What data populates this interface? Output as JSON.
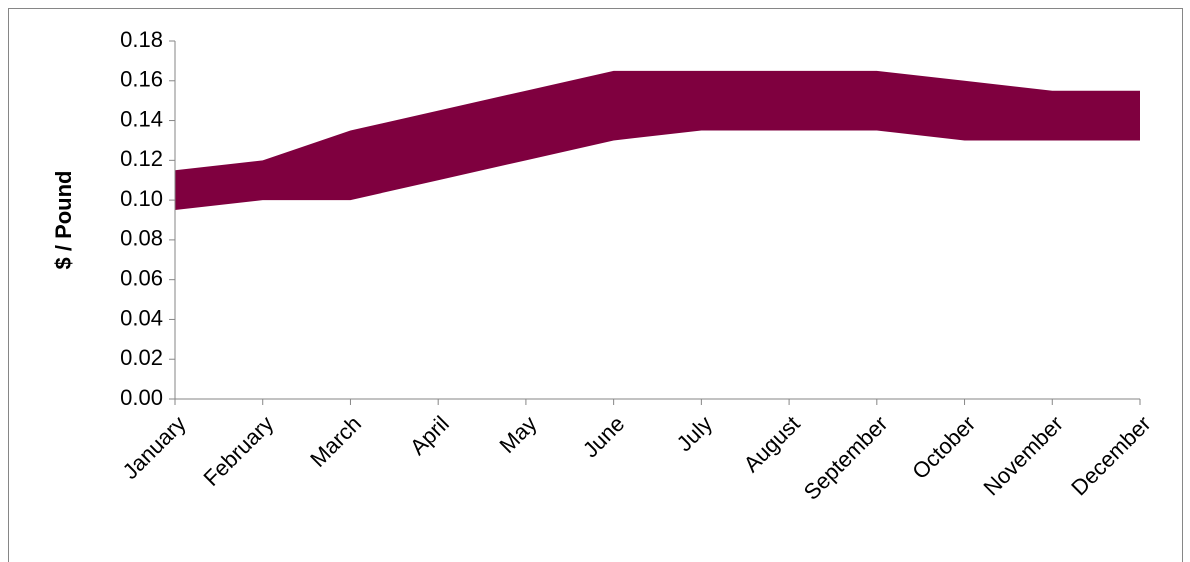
{
  "chart_data": {
    "type": "range_area",
    "y_label": "$ / Pound",
    "categories": [
      "January",
      "February",
      "March",
      "April",
      "May",
      "June",
      "July",
      "August",
      "September",
      "October",
      "November",
      "December"
    ],
    "low": [
      0.095,
      0.1,
      0.1,
      0.11,
      0.12,
      0.13,
      0.135,
      0.135,
      0.135,
      0.13,
      0.13,
      0.13
    ],
    "high": [
      0.115,
      0.12,
      0.135,
      0.145,
      0.155,
      0.165,
      0.165,
      0.165,
      0.165,
      0.16,
      0.155,
      0.155
    ],
    "color": "#7f003f",
    "ylim": [
      0,
      0.18
    ],
    "yticks": [
      {
        "value": 0,
        "label": "0.00"
      },
      {
        "value": 0.02,
        "label": "0.02"
      },
      {
        "value": 0.04,
        "label": "0.04"
      },
      {
        "value": 0.06,
        "label": "0.06"
      },
      {
        "value": 0.08,
        "label": "0.08"
      },
      {
        "value": 0.1,
        "label": "0.10"
      },
      {
        "value": 0.12,
        "label": "0.12"
      },
      {
        "value": 0.14,
        "label": "0.14"
      },
      {
        "value": 0.16,
        "label": "0.16"
      },
      {
        "value": 0.18,
        "label": "0.18"
      }
    ],
    "grid": false
  }
}
